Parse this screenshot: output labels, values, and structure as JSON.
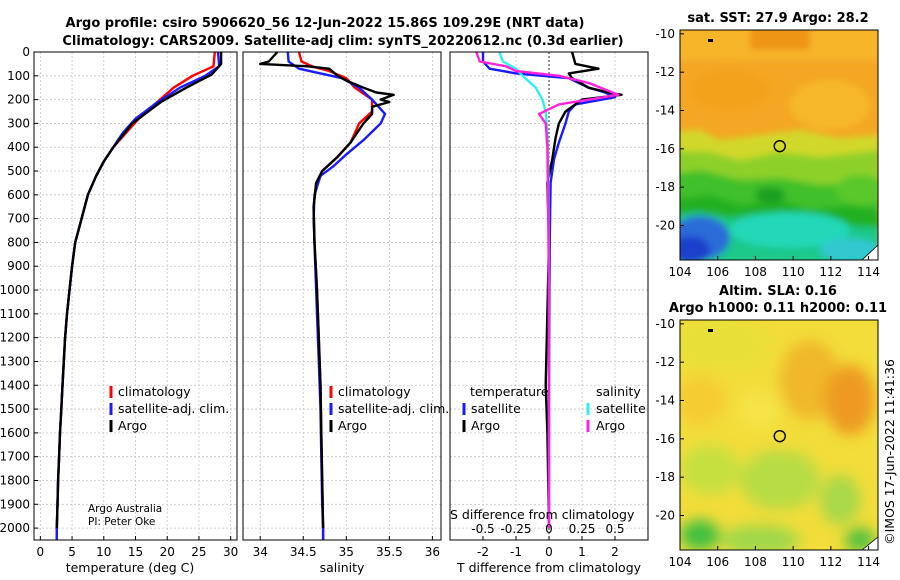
{
  "header": {
    "line1": "Argo profile: csiro 5906620_56 12-Jun-2022 15.86S 109.29E (NRT data)",
    "line2": "Climatology: CARS2009. Satellite-adj clim: synTS_20220612.nc (0.3d earlier)"
  },
  "credit": {
    "line1": "Argo Australia",
    "line2": "PI: Peter Oke"
  },
  "watermark": "©IMOS 17-Jun-2022 11:41:36",
  "colors": {
    "red": "#ff0000",
    "blue": "#1a1aff",
    "black": "#000000",
    "magenta": "#ff22dd",
    "cyan": "#33eeee"
  },
  "chart_data": [
    {
      "type": "line",
      "name": "temperature-profile",
      "xlabel": "temperature (deg C)",
      "xlim": [
        -1,
        31
      ],
      "ylim": [
        2050,
        0
      ],
      "xticks": [
        "0",
        "5",
        "10",
        "15",
        "20",
        "25",
        "30"
      ],
      "yticks": [
        "0",
        "100",
        "200",
        "300",
        "400",
        "500",
        "600",
        "700",
        "800",
        "900",
        "1000",
        "1100",
        "1200",
        "1300",
        "1400",
        "1500",
        "1600",
        "1700",
        "1800",
        "1900",
        "2000"
      ],
      "legend": [
        "climatology",
        "satellite-adj. clim.",
        "Argo"
      ],
      "series": [
        {
          "name": "climatology",
          "color": "red",
          "points": [
            [
              27.5,
              0
            ],
            [
              27.3,
              60
            ],
            [
              24,
              100
            ],
            [
              21,
              150
            ],
            [
              18,
              220
            ],
            [
              15.5,
              280
            ],
            [
              13.5,
              340
            ],
            [
              11.5,
              400
            ],
            [
              10,
              460
            ],
            [
              8.8,
              520
            ],
            [
              7.5,
              600
            ],
            [
              6.5,
              700
            ],
            [
              5.5,
              800
            ],
            [
              5,
              900
            ],
            [
              4.6,
              1000
            ],
            [
              4.2,
              1100
            ],
            [
              3.9,
              1200
            ],
            [
              3.7,
              1300
            ],
            [
              3.5,
              1400
            ],
            [
              3.3,
              1500
            ],
            [
              3.1,
              1600
            ],
            [
              2.95,
              1700
            ],
            [
              2.8,
              1800
            ],
            [
              2.7,
              1900
            ],
            [
              2.6,
              2000
            ],
            [
              2.6,
              2050
            ]
          ]
        },
        {
          "name": "satellite-adj. clim.",
          "color": "blue",
          "points": [
            [
              28,
              0
            ],
            [
              28.2,
              60
            ],
            [
              26,
              100
            ],
            [
              22,
              150
            ],
            [
              18,
              220
            ],
            [
              15,
              280
            ],
            [
              13,
              340
            ],
            [
              11.5,
              400
            ],
            [
              10,
              460
            ],
            [
              8.8,
              520
            ],
            [
              7.5,
              600
            ],
            [
              6.5,
              700
            ],
            [
              5.5,
              800
            ],
            [
              5,
              900
            ],
            [
              4.6,
              1000
            ],
            [
              4.2,
              1100
            ],
            [
              3.9,
              1200
            ],
            [
              3.7,
              1300
            ],
            [
              3.5,
              1400
            ],
            [
              3.3,
              1500
            ],
            [
              3.1,
              1600
            ],
            [
              2.95,
              1700
            ],
            [
              2.8,
              1800
            ],
            [
              2.7,
              1900
            ],
            [
              2.6,
              2000
            ],
            [
              2.6,
              2050
            ]
          ]
        },
        {
          "name": "Argo",
          "color": "black",
          "points": [
            [
              28.5,
              0
            ],
            [
              28.5,
              50
            ],
            [
              27,
              95
            ],
            [
              23,
              150
            ],
            [
              19,
              210
            ],
            [
              16.5,
              260
            ],
            [
              14.5,
              300
            ],
            [
              13,
              350
            ],
            [
              11.5,
              400
            ],
            [
              10,
              460
            ],
            [
              8.8,
              520
            ],
            [
              7.5,
              600
            ],
            [
              6.5,
              700
            ],
            [
              5.5,
              800
            ],
            [
              5,
              900
            ],
            [
              4.6,
              1000
            ],
            [
              4.2,
              1100
            ],
            [
              3.9,
              1200
            ],
            [
              3.7,
              1300
            ],
            [
              3.5,
              1400
            ],
            [
              3.3,
              1500
            ],
            [
              3.1,
              1600
            ],
            [
              2.95,
              1700
            ],
            [
              2.8,
              1800
            ],
            [
              2.7,
              1900
            ],
            [
              2.6,
              2000
            ]
          ]
        }
      ]
    },
    {
      "type": "line",
      "name": "salinity-profile",
      "xlabel": "salinity",
      "xlim": [
        33.8,
        36.1
      ],
      "ylim": [
        2050,
        0
      ],
      "xticks": [
        "34",
        "34.5",
        "35",
        "35.5",
        "36"
      ],
      "legend": [
        "climatology",
        "satellite-adj. clim.",
        "Argo"
      ],
      "series": [
        {
          "name": "climatology",
          "color": "red",
          "points": [
            [
              34.45,
              0
            ],
            [
              34.48,
              40
            ],
            [
              34.6,
              60
            ],
            [
              34.8,
              80
            ],
            [
              35.0,
              110
            ],
            [
              35.1,
              150
            ],
            [
              35.3,
              200
            ],
            [
              35.3,
              250
            ],
            [
              35.15,
              300
            ],
            [
              35.05,
              380
            ],
            [
              34.9,
              440
            ],
            [
              34.72,
              500
            ],
            [
              34.65,
              550
            ],
            [
              34.62,
              650
            ],
            [
              34.63,
              800
            ],
            [
              34.66,
              1000
            ],
            [
              34.68,
              1200
            ],
            [
              34.7,
              1400
            ],
            [
              34.71,
              1600
            ],
            [
              34.72,
              1800
            ],
            [
              34.73,
              2000
            ],
            [
              34.73,
              2050
            ]
          ]
        },
        {
          "name": "satellite-adj. clim.",
          "color": "blue",
          "points": [
            [
              34.32,
              0
            ],
            [
              34.33,
              40
            ],
            [
              34.45,
              70
            ],
            [
              34.7,
              90
            ],
            [
              34.95,
              110
            ],
            [
              35.15,
              150
            ],
            [
              35.3,
              200
            ],
            [
              35.45,
              260
            ],
            [
              35.4,
              300
            ],
            [
              35.2,
              370
            ],
            [
              35.0,
              430
            ],
            [
              34.85,
              480
            ],
            [
              34.7,
              520
            ],
            [
              34.63,
              600
            ],
            [
              34.62,
              700
            ],
            [
              34.64,
              900
            ],
            [
              34.66,
              1100
            ],
            [
              34.68,
              1300
            ],
            [
              34.7,
              1500
            ],
            [
              34.71,
              1700
            ],
            [
              34.72,
              1900
            ],
            [
              34.73,
              2000
            ],
            [
              34.73,
              2050
            ]
          ]
        },
        {
          "name": "Argo",
          "color": "black",
          "points": [
            [
              34.2,
              0
            ],
            [
              34.1,
              40
            ],
            [
              34.0,
              50
            ],
            [
              34.55,
              60
            ],
            [
              34.8,
              70
            ],
            [
              34.9,
              100
            ],
            [
              35.0,
              120
            ],
            [
              35.2,
              150
            ],
            [
              35.35,
              170
            ],
            [
              35.55,
              180
            ],
            [
              35.4,
              200
            ],
            [
              35.5,
              210
            ],
            [
              35.3,
              230
            ],
            [
              35.3,
              260
            ],
            [
              35.2,
              300
            ],
            [
              35.05,
              380
            ],
            [
              34.9,
              440
            ],
            [
              34.72,
              500
            ],
            [
              34.65,
              550
            ],
            [
              34.62,
              650
            ],
            [
              34.63,
              800
            ],
            [
              34.66,
              1000
            ],
            [
              34.68,
              1200
            ],
            [
              34.7,
              1400
            ],
            [
              34.71,
              1600
            ],
            [
              34.72,
              1800
            ],
            [
              34.73,
              2000
            ]
          ]
        }
      ]
    },
    {
      "type": "line",
      "name": "difference-profile",
      "xlabel": "T difference from climatology",
      "xlabel_top": "S difference from climatology",
      "xlim": [
        -3,
        3
      ],
      "ylim": [
        2050,
        0
      ],
      "xticks": [
        "-2",
        "-1",
        "0",
        "1",
        "2"
      ],
      "xticks_top": [
        "-0.5",
        "-0.25",
        "0",
        "0.25",
        "0.5"
      ],
      "legend_temperature": {
        "title": "temperature",
        "items": [
          "satellite",
          "Argo"
        ]
      },
      "legend_salinity": {
        "title": "salinity",
        "items": [
          "satellite",
          "Argo"
        ]
      },
      "series": [
        {
          "name": "temperature satellite",
          "color": "blue",
          "points": [
            [
              -2,
              0
            ],
            [
              -2,
              40
            ],
            [
              -1.8,
              70
            ],
            [
              -1,
              90
            ],
            [
              0.6,
              110
            ],
            [
              1.2,
              150
            ],
            [
              1.7,
              170
            ],
            [
              2,
              190
            ],
            [
              0.8,
              220
            ],
            [
              0.6,
              250
            ],
            [
              0.5,
              300
            ],
            [
              0.3,
              380
            ],
            [
              0.15,
              450
            ],
            [
              0.05,
              550
            ],
            [
              0.02,
              800
            ],
            [
              0,
              1500
            ],
            [
              0,
              2000
            ]
          ]
        },
        {
          "name": "temperature Argo",
          "color": "black",
          "points": [
            [
              0.7,
              0
            ],
            [
              0.8,
              50
            ],
            [
              1.5,
              70
            ],
            [
              0.6,
              90
            ],
            [
              0.7,
              110
            ],
            [
              1.2,
              150
            ],
            [
              1.8,
              170
            ],
            [
              2.2,
              180
            ],
            [
              1,
              200
            ],
            [
              0.5,
              250
            ],
            [
              0.3,
              300
            ],
            [
              0.2,
              360
            ],
            [
              0.1,
              450
            ],
            [
              -0.05,
              550
            ],
            [
              0,
              800
            ],
            [
              -0.1,
              1400
            ],
            [
              -0.05,
              1600
            ],
            [
              0,
              2000
            ]
          ]
        },
        {
          "name": "salinity satellite",
          "color": "cyan",
          "points": [
            [
              -1.5,
              0
            ],
            [
              -1.4,
              40
            ],
            [
              -1,
              70
            ],
            [
              -0.8,
              100
            ],
            [
              -0.4,
              150
            ],
            [
              -0.2,
              200
            ],
            [
              -0.1,
              250
            ],
            [
              -0.05,
              350
            ],
            [
              -0.02,
              500
            ],
            [
              0,
              1000
            ],
            [
              0,
              2000
            ]
          ]
        },
        {
          "name": "salinity Argo",
          "color": "magenta",
          "points": [
            [
              -2.2,
              0
            ],
            [
              -2.1,
              40
            ],
            [
              -1.3,
              60
            ],
            [
              -1,
              80
            ],
            [
              0.3,
              100
            ],
            [
              1.2,
              130
            ],
            [
              2.1,
              180
            ],
            [
              0.3,
              220
            ],
            [
              -0.3,
              260
            ],
            [
              -0.1,
              300
            ],
            [
              -0.05,
              400
            ],
            [
              -0.03,
              600
            ],
            [
              0,
              1000
            ],
            [
              0,
              2000
            ]
          ]
        }
      ]
    },
    {
      "type": "heatmap",
      "name": "sst-map",
      "title": "sat. SST: 27.9 Argo: 28.2",
      "xlim": [
        104,
        114.5
      ],
      "ylim": [
        -21.8,
        -9.8
      ],
      "xticks": [
        "104",
        "106",
        "108",
        "110",
        "112",
        "114"
      ],
      "yticks": [
        "-10",
        "-12",
        "-14",
        "-16",
        "-18",
        "-20"
      ],
      "marker": [
        109.29,
        -15.86
      ]
    },
    {
      "type": "heatmap",
      "name": "sla-map",
      "title": "Altim. SLA: 0.16",
      "subtitle": "Argo h1000: 0.11 h2000: 0.11",
      "xlim": [
        104,
        114.5
      ],
      "ylim": [
        -21.8,
        -9.8
      ],
      "xticks": [
        "104",
        "106",
        "108",
        "110",
        "112",
        "114"
      ],
      "yticks": [
        "-10",
        "-12",
        "-14",
        "-16",
        "-18",
        "-20"
      ],
      "marker": [
        109.29,
        -15.86
      ]
    }
  ]
}
